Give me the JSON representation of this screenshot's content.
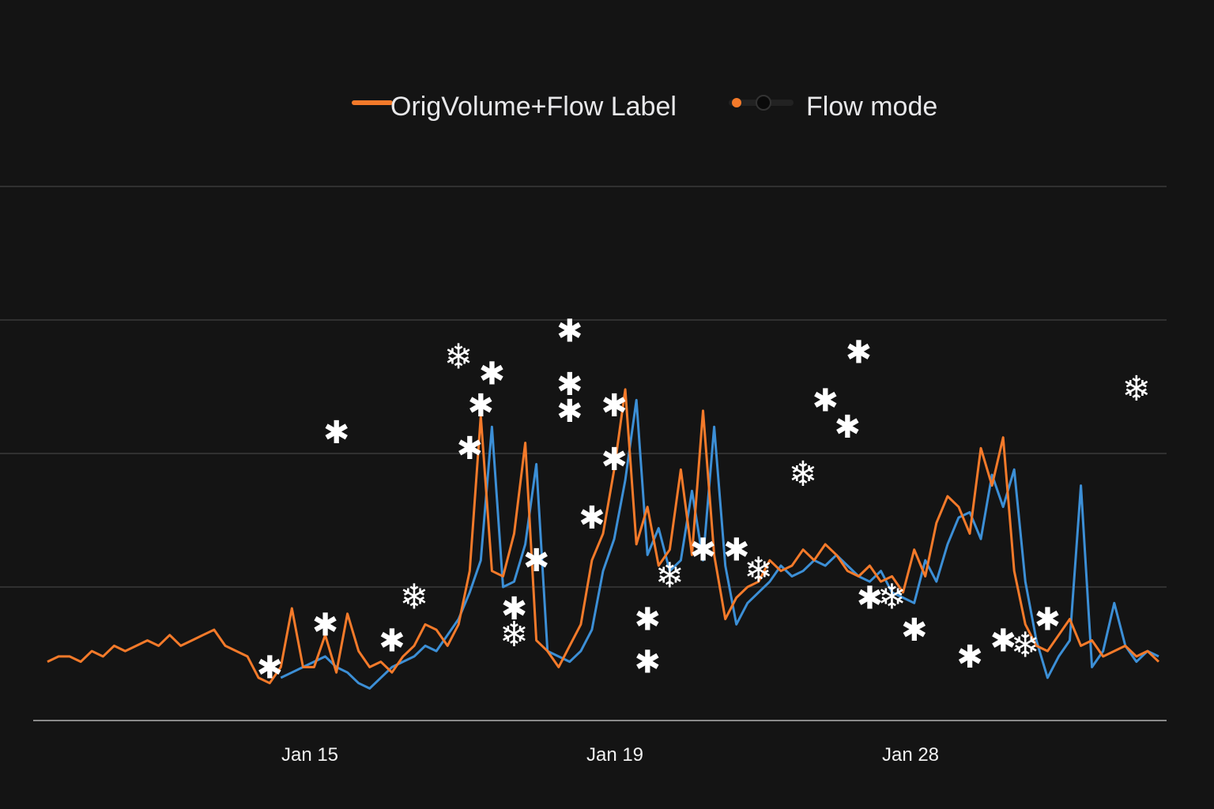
{
  "chart_data": {
    "type": "line",
    "title": "",
    "xlabel": "",
    "ylabel": "",
    "x_ticks": [
      "Jan 15",
      "Jan 19",
      "Jan 28"
    ],
    "xlim": [
      0,
      100
    ],
    "ylim": [
      0,
      100
    ],
    "grid": true,
    "legend_position": "top",
    "legend": [
      {
        "label_part1": "OrigVolume",
        "label_part2": "+Flow Label",
        "color": "#f47a2a",
        "style": "line"
      },
      {
        "label": "Flow mode",
        "color": "#f47a2a",
        "style": "line-dot"
      }
    ],
    "series": [
      {
        "color": "#f47a2a",
        "x": [
          0,
          1,
          2,
          3,
          4,
          5,
          6,
          7,
          8,
          9,
          10,
          11,
          12,
          13,
          14,
          15,
          16,
          17,
          18,
          19,
          20,
          21,
          22,
          23,
          24,
          25,
          26,
          27,
          28,
          29,
          30,
          31,
          32,
          33,
          34,
          35,
          36,
          37,
          38,
          39,
          40,
          41,
          42,
          43,
          44,
          45,
          46,
          47,
          48,
          49,
          50,
          51,
          52,
          53,
          54,
          55,
          56,
          57,
          58,
          59,
          60,
          61,
          62,
          63,
          64,
          65,
          66,
          67,
          68,
          69,
          70,
          71,
          72,
          73,
          74,
          75,
          76,
          77,
          78,
          79,
          80,
          81,
          82,
          83,
          84,
          85,
          86,
          87,
          88,
          89,
          90,
          91,
          92,
          93,
          94,
          95,
          96,
          97,
          98,
          99,
          100
        ],
        "values": [
          11,
          12,
          12,
          11,
          13,
          12,
          14,
          13,
          14,
          15,
          14,
          16,
          14,
          15,
          16,
          17,
          14,
          13,
          12,
          8,
          7,
          10,
          21,
          10,
          10,
          16,
          9,
          20,
          13,
          10,
          11,
          9,
          12,
          14,
          18,
          17,
          14,
          18,
          28,
          57,
          28,
          27,
          35,
          52,
          15,
          13,
          10,
          14,
          18,
          30,
          35,
          47,
          62,
          33,
          40,
          29,
          32,
          47,
          31,
          58,
          31,
          19,
          23,
          25,
          26,
          30,
          28,
          29,
          32,
          30,
          33,
          31,
          28,
          27,
          29,
          26,
          27,
          24,
          32,
          27,
          37,
          42,
          40,
          35,
          51,
          44,
          53,
          28,
          18,
          14,
          13,
          16,
          19,
          14,
          15,
          12,
          13,
          14,
          12,
          13,
          11
        ]
      },
      {
        "color": "#3c8fd6",
        "x": [
          21,
          22,
          23,
          24,
          25,
          26,
          27,
          28,
          29,
          30,
          31,
          32,
          33,
          34,
          35,
          36,
          37,
          38,
          39,
          40,
          41,
          42,
          43,
          44,
          45,
          46,
          47,
          48,
          49,
          50,
          51,
          52,
          53,
          54,
          55,
          56,
          57,
          58,
          59,
          60,
          61,
          62,
          63,
          64,
          65,
          66,
          67,
          68,
          69,
          70,
          71,
          72,
          73,
          74,
          75,
          76,
          77,
          78,
          79,
          80,
          81,
          82,
          83,
          84,
          85,
          86,
          87,
          88,
          89,
          90,
          91,
          92,
          93,
          94,
          95,
          96,
          97,
          98,
          99,
          100
        ],
        "values": [
          8,
          9,
          10,
          11,
          12,
          10,
          9,
          7,
          6,
          8,
          10,
          11,
          12,
          14,
          13,
          16,
          19,
          24,
          30,
          55,
          25,
          26,
          33,
          48,
          13,
          12,
          11,
          13,
          17,
          28,
          34,
          45,
          60,
          31,
          36,
          28,
          30,
          43,
          30,
          55,
          29,
          18,
          22,
          24,
          26,
          29,
          27,
          28,
          30,
          29,
          31,
          29,
          27,
          26,
          28,
          24,
          23,
          22,
          30,
          26,
          33,
          38,
          39,
          34,
          46,
          40,
          47,
          26,
          15,
          8,
          12,
          15,
          44,
          10,
          13,
          22,
          14,
          11,
          13,
          12
        ]
      }
    ],
    "markers": [
      {
        "x": 20,
        "y": 10,
        "glyph": "✱"
      },
      {
        "x": 25,
        "y": 18,
        "glyph": "✱"
      },
      {
        "x": 26,
        "y": 54,
        "glyph": "✱"
      },
      {
        "x": 31,
        "y": 15,
        "glyph": "✱"
      },
      {
        "x": 33,
        "y": 23,
        "glyph": "❄"
      },
      {
        "x": 37,
        "y": 68,
        "glyph": "❄"
      },
      {
        "x": 38,
        "y": 51,
        "glyph": "✱"
      },
      {
        "x": 39,
        "y": 59,
        "glyph": "✱"
      },
      {
        "x": 40,
        "y": 65,
        "glyph": "✱"
      },
      {
        "x": 42,
        "y": 21,
        "glyph": "✱"
      },
      {
        "x": 42,
        "y": 16,
        "glyph": "❄"
      },
      {
        "x": 44,
        "y": 30,
        "glyph": "✱"
      },
      {
        "x": 47,
        "y": 73,
        "glyph": "✱"
      },
      {
        "x": 47,
        "y": 63,
        "glyph": "✱"
      },
      {
        "x": 47,
        "y": 58,
        "glyph": "✱"
      },
      {
        "x": 49,
        "y": 38,
        "glyph": "✱"
      },
      {
        "x": 51,
        "y": 59,
        "glyph": "✱"
      },
      {
        "x": 51,
        "y": 49,
        "glyph": "✱"
      },
      {
        "x": 54,
        "y": 19,
        "glyph": "✱"
      },
      {
        "x": 54,
        "y": 11,
        "glyph": "✱"
      },
      {
        "x": 56,
        "y": 27,
        "glyph": "❄"
      },
      {
        "x": 59,
        "y": 32,
        "glyph": "✱"
      },
      {
        "x": 62,
        "y": 32,
        "glyph": "✱"
      },
      {
        "x": 64,
        "y": 28,
        "glyph": "❄"
      },
      {
        "x": 68,
        "y": 46,
        "glyph": "❄"
      },
      {
        "x": 70,
        "y": 60,
        "glyph": "✱"
      },
      {
        "x": 72,
        "y": 55,
        "glyph": "✱"
      },
      {
        "x": 73,
        "y": 69,
        "glyph": "✱"
      },
      {
        "x": 74,
        "y": 23,
        "glyph": "✱"
      },
      {
        "x": 76,
        "y": 23,
        "glyph": "❄"
      },
      {
        "x": 78,
        "y": 17,
        "glyph": "✱"
      },
      {
        "x": 83,
        "y": 12,
        "glyph": "✱"
      },
      {
        "x": 86,
        "y": 15,
        "glyph": "✱"
      },
      {
        "x": 88,
        "y": 14,
        "glyph": "❄"
      },
      {
        "x": 90,
        "y": 19,
        "glyph": "✱"
      },
      {
        "x": 98,
        "y": 62,
        "glyph": "❄"
      }
    ]
  }
}
